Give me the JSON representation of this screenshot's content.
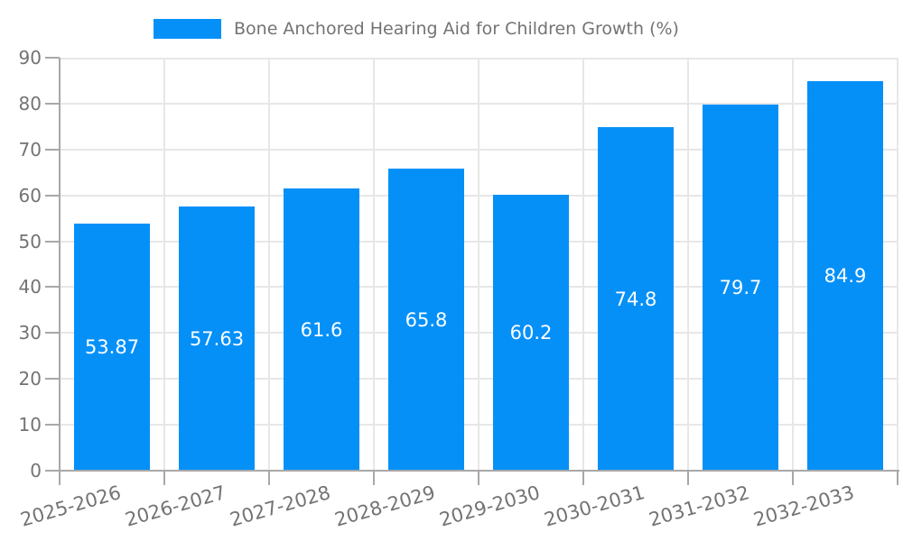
{
  "colors": {
    "bar": "#0590F8",
    "grid": "#E7E7E7",
    "axis": "#A8A8A8",
    "tick_text": "#737373",
    "value_text": "#FFFFFF",
    "background": "#FFFFFF"
  },
  "chart_data": {
    "type": "bar",
    "title": "",
    "xlabel": "",
    "ylabel": "",
    "categories": [
      "2025-2026",
      "2026-2027",
      "2027-2028",
      "2028-2029",
      "2029-2030",
      "2030-2031",
      "2031-2032",
      "2032-2033"
    ],
    "series": [
      {
        "name": "Bone Anchored Hearing Aid for Children Growth (%)",
        "values": [
          53.87,
          57.63,
          61.6,
          65.8,
          60.2,
          74.8,
          79.7,
          84.9
        ]
      }
    ],
    "value_labels": [
      "53.87",
      "57.63",
      "61.6",
      "65.8",
      "60.2",
      "74.8",
      "79.7",
      "84.9"
    ],
    "ylim": [
      0,
      90
    ],
    "ytick_step": 10,
    "ytick_labels": [
      "0",
      "10",
      "20",
      "30",
      "40",
      "50",
      "60",
      "70",
      "80",
      "90"
    ],
    "grid": true,
    "legend_position": "top-center",
    "x_label_rotation_deg": -16
  }
}
